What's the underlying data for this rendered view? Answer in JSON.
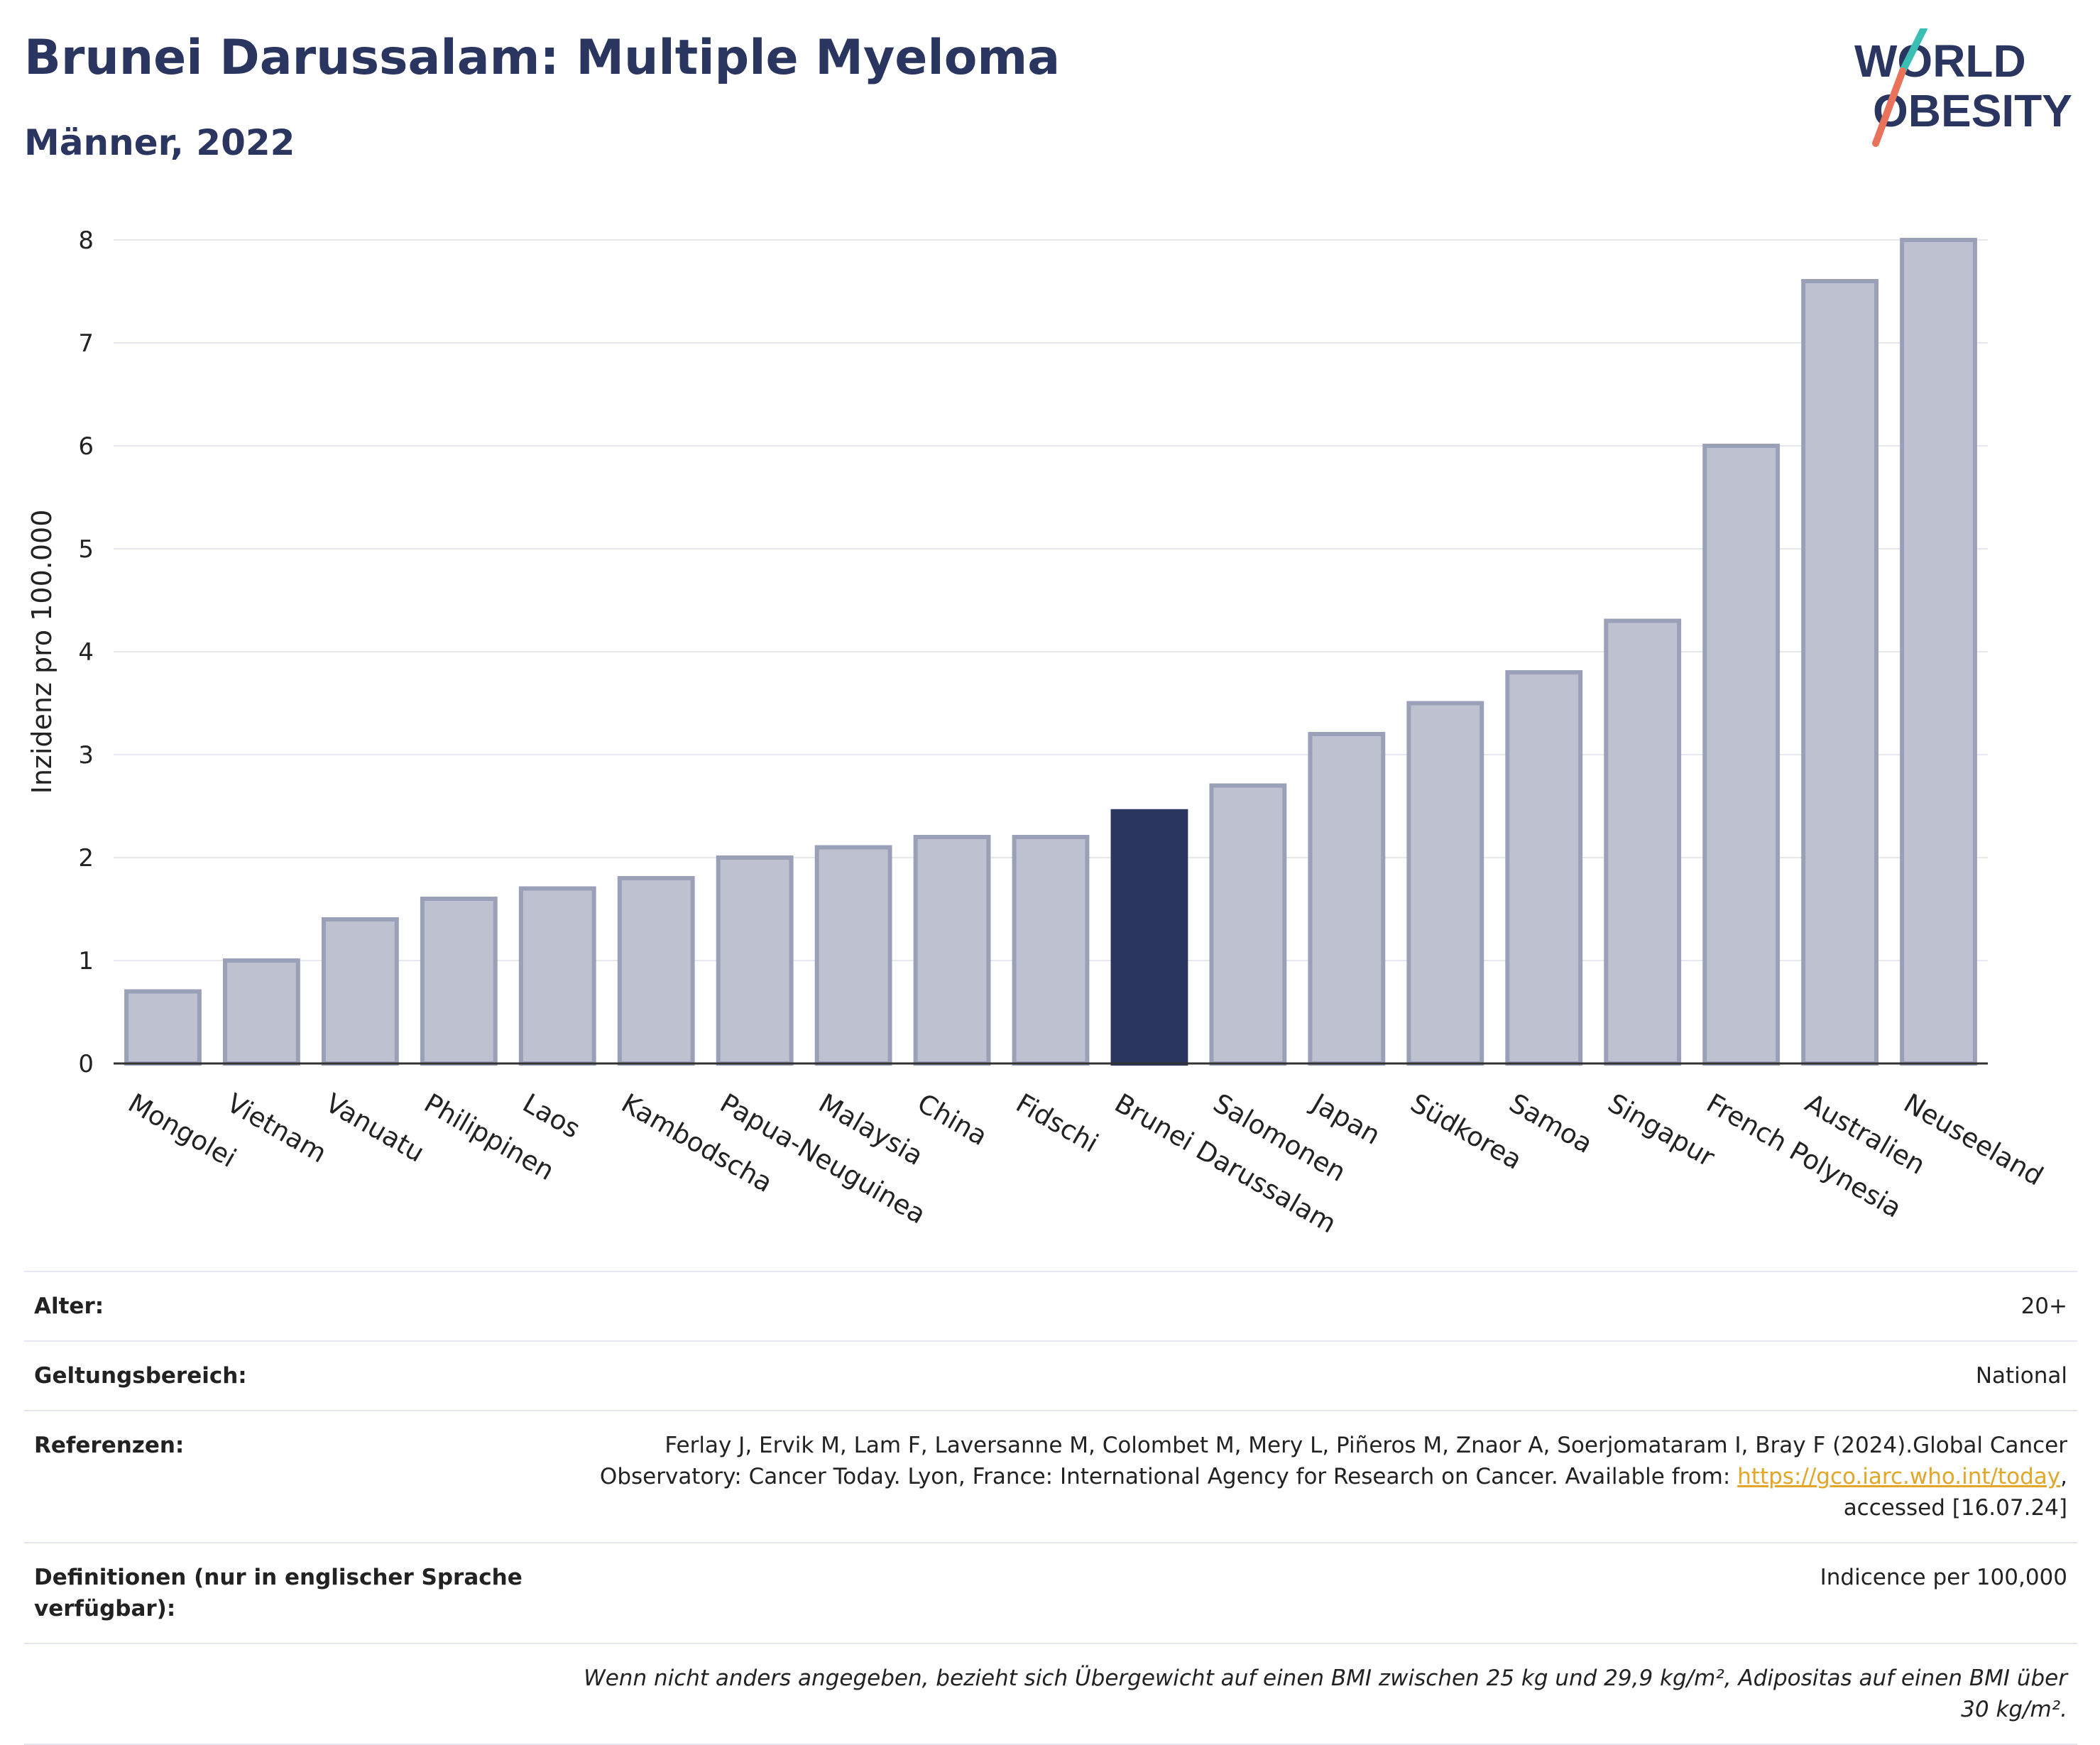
{
  "header": {
    "title": "Brunei Darussalam: Multiple Myeloma",
    "subtitle": "Männer, 2022"
  },
  "logo": {
    "line1": "WORLD",
    "line2": "OBESITY",
    "colors": {
      "text": "#2a3560",
      "slash_top": "#3bbfb4",
      "slash_bottom": "#e8735a"
    }
  },
  "colors": {
    "bar_default": "#bec2d0",
    "bar_default_border": "#9aa0b8",
    "bar_highlight": "#2a3560",
    "axis": "#333333",
    "grid": "#e6e8ee"
  },
  "chart_data": {
    "type": "bar",
    "ylabel": "Inzidenz pro 100.000",
    "ylim": [
      0,
      8
    ],
    "yticks": [
      0,
      1,
      2,
      3,
      4,
      5,
      6,
      7,
      8
    ],
    "grid": true,
    "highlight": "Brunei Darussalam",
    "categories": [
      "Mongolei",
      "Vietnam",
      "Vanuatu",
      "Philippinen",
      "Laos",
      "Kambodscha",
      "Papua-Neuguinea",
      "Malaysia",
      "China",
      "Fidschi",
      "Brunei Darussalam",
      "Salomonen",
      "Japan",
      "Südkorea",
      "Samoa",
      "Singapur",
      "French Polynesia",
      "Australien",
      "Neuseeland"
    ],
    "values": [
      0.7,
      1.0,
      1.4,
      1.6,
      1.7,
      1.8,
      2.0,
      2.1,
      2.2,
      2.2,
      2.45,
      2.7,
      3.2,
      3.5,
      3.8,
      4.3,
      6.0,
      7.6,
      8.0
    ]
  },
  "meta": {
    "age_label": "Alter:",
    "age_value": "20+",
    "scope_label": "Geltungsbereich:",
    "scope_value": "National",
    "refs_label": "Referenzen:",
    "refs_text_1": "Ferlay J, Ervik M, Lam F, Laversanne M, Colombet M, Mery L, Piñeros M, Znaor A, Soerjomataram I, Bray F (2024).Global Cancer Observatory: Cancer Today. Lyon, France: International Agency for Research on Cancer. Available from: ",
    "refs_link": "https://gco.iarc.who.int/today",
    "refs_text_2": ", accessed [16.07.24]",
    "defs_label": "Definitionen (nur in englischer Sprache verfügbar):",
    "defs_value": "Indicence per 100,000",
    "note": "Wenn nicht anders angegeben, bezieht sich Übergewicht auf einen BMI zwischen 25 kg und 29,9 kg/m², Adipositas auf einen BMI über 30 kg/m²."
  }
}
